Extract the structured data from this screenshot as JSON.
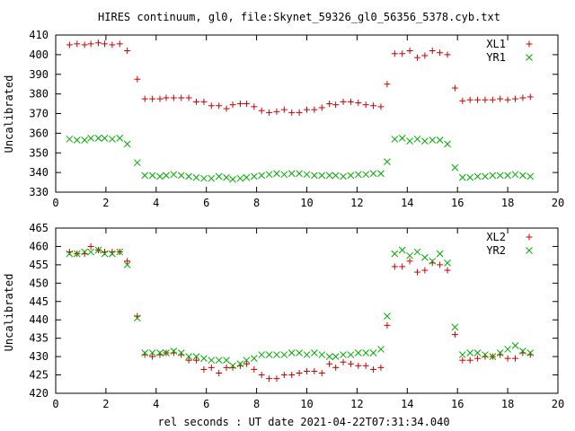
{
  "title": "HIRES continuum, gl0, file:Skynet_59326_gl0_56356_5378.cyb.txt",
  "xlabel": "rel seconds : UT date 2021-04-22T07:31:34.040",
  "colors": {
    "red": "#cc0000",
    "green": "#00aa00"
  },
  "chart_data": [
    {
      "type": "scatter",
      "ylabel": "Uncalibrated",
      "xlim": [
        0,
        20
      ],
      "ylim": [
        330,
        410
      ],
      "xticks": [
        0,
        2,
        4,
        6,
        8,
        10,
        12,
        14,
        16,
        18,
        20
      ],
      "yticks": [
        330,
        340,
        350,
        360,
        370,
        380,
        390,
        400,
        410
      ],
      "legend_position": "top-right",
      "series": [
        {
          "name": "XL1",
          "marker": "plus",
          "color": "#cc0000",
          "x": [
            0.55,
            0.85,
            1.15,
            1.4,
            1.7,
            1.95,
            2.25,
            2.55,
            2.85,
            3.25,
            3.55,
            3.85,
            4.15,
            4.4,
            4.7,
            5.0,
            5.3,
            5.6,
            5.9,
            6.2,
            6.5,
            6.8,
            7.05,
            7.35,
            7.6,
            7.9,
            8.2,
            8.5,
            8.8,
            9.1,
            9.4,
            9.7,
            10.0,
            10.3,
            10.6,
            10.9,
            11.15,
            11.45,
            11.75,
            12.05,
            12.35,
            12.65,
            12.95,
            13.2,
            13.5,
            13.8,
            14.1,
            14.4,
            14.7,
            15.0,
            15.3,
            15.6,
            15.9,
            16.2,
            16.5,
            16.8,
            17.1,
            17.4,
            17.7,
            18.0,
            18.3,
            18.6,
            18.9
          ],
          "y": [
            405,
            405.5,
            405,
            405.5,
            406,
            405.5,
            405,
            405.5,
            402,
            387.5,
            377.5,
            377.5,
            377.5,
            378,
            378,
            378,
            378,
            376,
            376,
            374,
            374,
            372.5,
            374.5,
            375,
            375,
            373.5,
            371.5,
            370.5,
            371,
            372,
            370.5,
            370.5,
            372,
            372,
            373,
            375,
            374.5,
            376,
            376,
            375.5,
            374.5,
            374,
            373.5,
            385,
            400.5,
            400.5,
            402,
            398.5,
            399.5,
            402,
            401,
            400,
            383,
            376.5,
            377,
            377,
            377,
            377,
            377.5,
            377,
            377.5,
            378,
            378.5
          ]
        },
        {
          "name": "YR1",
          "marker": "cross",
          "color": "#00aa00",
          "x": [
            0.55,
            0.85,
            1.15,
            1.4,
            1.7,
            1.95,
            2.25,
            2.55,
            2.85,
            3.25,
            3.55,
            3.85,
            4.15,
            4.4,
            4.7,
            5.0,
            5.3,
            5.6,
            5.9,
            6.2,
            6.5,
            6.8,
            7.05,
            7.35,
            7.6,
            7.9,
            8.2,
            8.5,
            8.8,
            9.1,
            9.4,
            9.7,
            10.0,
            10.3,
            10.6,
            10.9,
            11.15,
            11.45,
            11.75,
            12.05,
            12.35,
            12.65,
            12.95,
            13.2,
            13.5,
            13.8,
            14.1,
            14.4,
            14.7,
            15.0,
            15.3,
            15.6,
            15.9,
            16.2,
            16.5,
            16.8,
            17.1,
            17.4,
            17.7,
            18.0,
            18.3,
            18.6,
            18.9
          ],
          "y": [
            357,
            356.5,
            356.5,
            357.5,
            357.5,
            357.5,
            357,
            357.5,
            354.5,
            345,
            338.5,
            338.5,
            338,
            338.5,
            339,
            338.5,
            338,
            337.5,
            337,
            337,
            338,
            337.5,
            336.5,
            337,
            337.5,
            338,
            338.5,
            339,
            339.5,
            339,
            339.5,
            339.5,
            339,
            338.5,
            338.5,
            338.5,
            338.5,
            338,
            338.5,
            339,
            339,
            339.5,
            339.5,
            345.5,
            357,
            357.5,
            356,
            357,
            356,
            356.5,
            356.5,
            354.5,
            342.5,
            337.5,
            337.5,
            338,
            338,
            338.5,
            338.5,
            338.5,
            339,
            338.5,
            338
          ]
        }
      ]
    },
    {
      "type": "scatter",
      "ylabel": "Uncalibrated",
      "xlim": [
        0,
        20
      ],
      "ylim": [
        420,
        465
      ],
      "xticks": [
        0,
        2,
        4,
        6,
        8,
        10,
        12,
        14,
        16,
        18,
        20
      ],
      "yticks": [
        420,
        425,
        430,
        435,
        440,
        445,
        450,
        455,
        460,
        465
      ],
      "legend_position": "top-right",
      "series": [
        {
          "name": "XL2",
          "marker": "plus",
          "color": "#cc0000",
          "x": [
            0.55,
            0.85,
            1.15,
            1.4,
            1.7,
            1.95,
            2.25,
            2.55,
            2.85,
            3.25,
            3.55,
            3.85,
            4.15,
            4.4,
            4.7,
            5.0,
            5.3,
            5.6,
            5.9,
            6.2,
            6.5,
            6.8,
            7.05,
            7.35,
            7.6,
            7.9,
            8.2,
            8.5,
            8.8,
            9.1,
            9.4,
            9.7,
            10.0,
            10.3,
            10.6,
            10.9,
            11.15,
            11.45,
            11.75,
            12.05,
            12.35,
            12.65,
            12.95,
            13.2,
            13.5,
            13.8,
            14.1,
            14.4,
            14.7,
            15.0,
            15.3,
            15.6,
            15.9,
            16.2,
            16.5,
            16.8,
            17.1,
            17.4,
            17.7,
            18.0,
            18.3,
            18.6,
            18.9
          ],
          "y": [
            458.5,
            458,
            458,
            460,
            459,
            458.5,
            458.5,
            458.5,
            456,
            441,
            430.5,
            430,
            430.5,
            431,
            431,
            430.5,
            429,
            429,
            426.5,
            427,
            425.5,
            427,
            427,
            427.5,
            428,
            426.5,
            425,
            424,
            424,
            425,
            425,
            425.5,
            426,
            426,
            425.5,
            428,
            427,
            428.5,
            428,
            427.5,
            427.5,
            426.5,
            427,
            438.5,
            454.5,
            454.5,
            456,
            453,
            453.5,
            455.5,
            455,
            453.5,
            436,
            429,
            429,
            429.5,
            430,
            430,
            430.5,
            429.5,
            429.5,
            431,
            430.5
          ]
        },
        {
          "name": "YR2",
          "marker": "cross",
          "color": "#00aa00",
          "x": [
            0.55,
            0.85,
            1.15,
            1.4,
            1.7,
            1.95,
            2.25,
            2.55,
            2.85,
            3.25,
            3.55,
            3.85,
            4.15,
            4.4,
            4.7,
            5.0,
            5.3,
            5.6,
            5.9,
            6.2,
            6.5,
            6.8,
            7.05,
            7.35,
            7.6,
            7.9,
            8.2,
            8.5,
            8.8,
            9.1,
            9.4,
            9.7,
            10.0,
            10.3,
            10.6,
            10.9,
            11.15,
            11.45,
            11.75,
            12.05,
            12.35,
            12.65,
            12.95,
            13.2,
            13.5,
            13.8,
            14.1,
            14.4,
            14.7,
            15.0,
            15.3,
            15.6,
            15.9,
            16.2,
            16.5,
            16.8,
            17.1,
            17.4,
            17.7,
            18.0,
            18.3,
            18.6,
            18.9
          ],
          "y": [
            458,
            458,
            458.5,
            458.5,
            459,
            458,
            458,
            458.5,
            455,
            440.5,
            431,
            431,
            431,
            431,
            431.5,
            431,
            430,
            430,
            429.5,
            429,
            429,
            429,
            427.5,
            428,
            429,
            429.5,
            430.5,
            430.5,
            430.5,
            430.5,
            431,
            431,
            430.5,
            431,
            430.5,
            430,
            430,
            430.5,
            430.5,
            431,
            431,
            431,
            432,
            441,
            458,
            459,
            457.5,
            458.5,
            457,
            456,
            458,
            455.5,
            438,
            430.5,
            431,
            431,
            430.5,
            430,
            431,
            432,
            433,
            431.5,
            431
          ]
        }
      ]
    }
  ]
}
